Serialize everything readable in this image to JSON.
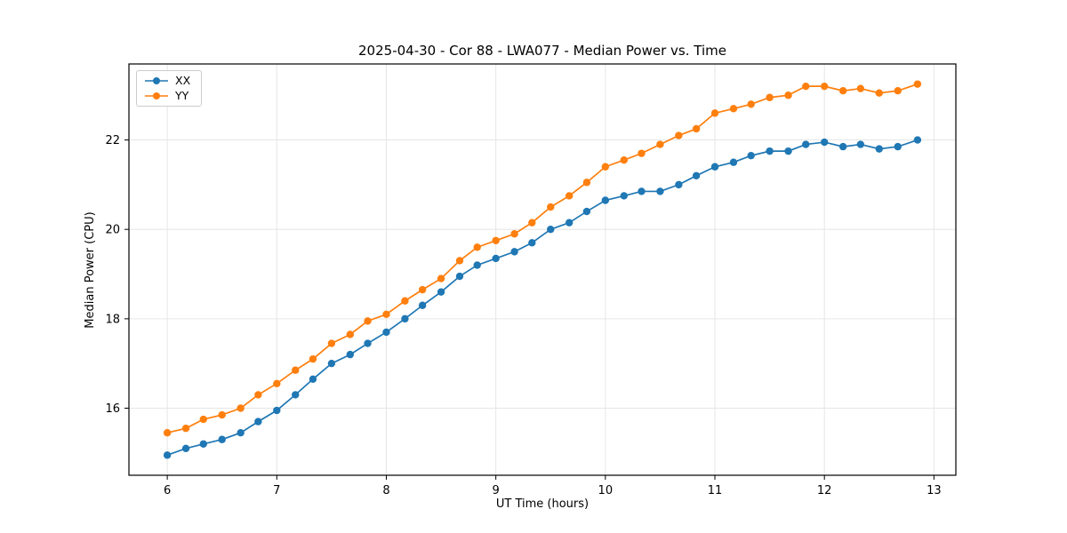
{
  "chart_data": {
    "type": "line",
    "title": "2025-04-30 - Cor 88 - LWA077 - Median Power vs. Time",
    "xlabel": "UT Time (hours)",
    "ylabel": "Median Power (CPU)",
    "xlim": [
      5.65,
      13.2
    ],
    "ylim": [
      14.5,
      23.7
    ],
    "xticks": [
      6,
      7,
      8,
      9,
      10,
      11,
      12,
      13
    ],
    "yticks": [
      16,
      18,
      20,
      22
    ],
    "grid": true,
    "legend_position": "upper left",
    "x": [
      6.0,
      6.17,
      6.33,
      6.5,
      6.67,
      6.83,
      7.0,
      7.17,
      7.33,
      7.5,
      7.67,
      7.83,
      8.0,
      8.17,
      8.33,
      8.5,
      8.67,
      8.83,
      9.0,
      9.17,
      9.33,
      9.5,
      9.67,
      9.83,
      10.0,
      10.17,
      10.33,
      10.5,
      10.67,
      10.83,
      11.0,
      11.17,
      11.33,
      11.5,
      11.67,
      11.83,
      12.0,
      12.17,
      12.33,
      12.5,
      12.67,
      12.85
    ],
    "series": [
      {
        "name": "XX",
        "color": "#1f77b4",
        "values": [
          14.95,
          15.1,
          15.2,
          15.3,
          15.45,
          15.7,
          15.95,
          16.3,
          16.65,
          17.0,
          17.2,
          17.45,
          17.7,
          18.0,
          18.3,
          18.6,
          18.95,
          19.2,
          19.35,
          19.5,
          19.7,
          20.0,
          20.15,
          20.4,
          20.65,
          20.75,
          20.85,
          20.85,
          21.0,
          21.2,
          21.4,
          21.5,
          21.65,
          21.75,
          21.75,
          21.9,
          21.95,
          21.85,
          21.9,
          21.8,
          21.85,
          22.0
        ]
      },
      {
        "name": "YY",
        "color": "#ff7f0e",
        "values": [
          15.45,
          15.55,
          15.75,
          15.85,
          16.0,
          16.3,
          16.55,
          16.85,
          17.1,
          17.45,
          17.65,
          17.95,
          18.1,
          18.4,
          18.65,
          18.9,
          19.3,
          19.6,
          19.75,
          19.9,
          20.15,
          20.5,
          20.75,
          21.05,
          21.4,
          21.55,
          21.7,
          21.9,
          22.1,
          22.25,
          22.6,
          22.7,
          22.8,
          22.95,
          23.0,
          23.2,
          23.2,
          23.1,
          23.15,
          23.05,
          23.1,
          23.25
        ]
      }
    ]
  }
}
